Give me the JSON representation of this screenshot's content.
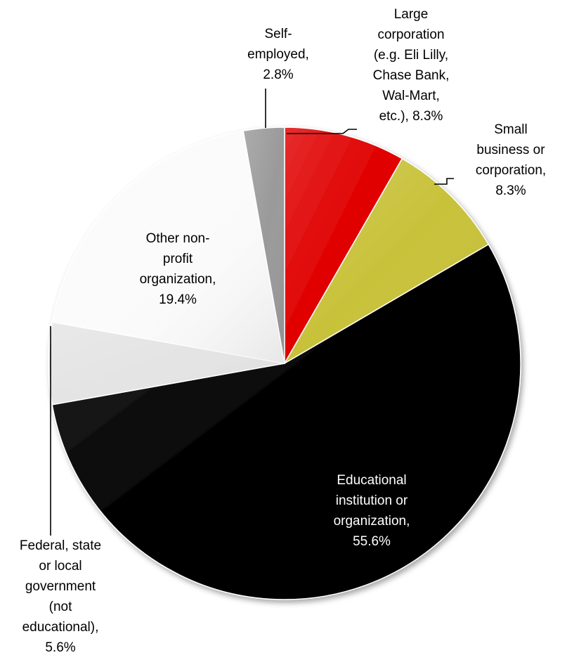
{
  "chart_data": {
    "type": "pie",
    "start_angle_deg": 0,
    "direction": "clockwise",
    "slices": [
      {
        "name": "Large corporation (e.g. Eli Lilly, Chase Bank, Wal-Mart, etc.)",
        "value": 8.3,
        "color": "#e00000",
        "label_lines": [
          "Large",
          "corporation",
          "(e.g. Eli Lilly,",
          "Chase Bank,",
          "Wal-Mart,",
          "etc.), 8.3%"
        ],
        "label_color": "#000000",
        "label_outside": true
      },
      {
        "name": "Small business or corporation",
        "value": 8.3,
        "color": "#c8c23a",
        "label_lines": [
          "Small",
          "business or",
          "corporation,",
          "8.3%"
        ],
        "label_color": "#000000",
        "label_outside": true
      },
      {
        "name": "Educational institution or organization",
        "value": 55.6,
        "color": "#000000",
        "label_lines": [
          "Educational",
          "institution or",
          "organization,",
          "55.6%"
        ],
        "label_color": "#ffffff",
        "label_outside": false
      },
      {
        "name": "Federal, state or local government (not educational)",
        "value": 5.6,
        "color": "#e4e4e4",
        "label_lines": [
          "Federal, state",
          "or local",
          "government",
          "(not",
          "educational),",
          "5.6%"
        ],
        "label_color": "#000000",
        "label_outside": true
      },
      {
        "name": "Other non-profit organization",
        "value": 19.4,
        "color": "#fbfbfb",
        "label_lines": [
          "Other non-",
          "profit",
          "organization,",
          "19.4%"
        ],
        "label_color": "#000000",
        "label_outside": false
      },
      {
        "name": "Self-employed",
        "value": 2.8,
        "color": "#9a9a9a",
        "label_lines": [
          "Self-",
          "employed,",
          "2.8%"
        ],
        "label_color": "#000000",
        "label_outside": true
      }
    ]
  }
}
